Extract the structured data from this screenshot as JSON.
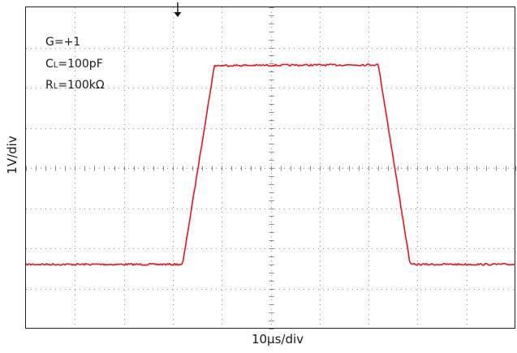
{
  "chart_data": {
    "type": "line",
    "title": "",
    "xlabel": "10µs/div",
    "ylabel": "1V/div",
    "grid": true,
    "x_divisions": 10,
    "y_divisions": 8,
    "xlim": [
      0,
      10
    ],
    "ylim": [
      0,
      8
    ],
    "x_unit": "div",
    "y_unit": "div",
    "trace_color": "#e8141b",
    "trigger_marker_x": 3.1,
    "series": [
      {
        "x": [
          0.0,
          3.2,
          3.85,
          7.2,
          7.85,
          10.0
        ],
        "y": [
          1.6,
          1.6,
          6.55,
          6.57,
          1.6,
          1.6
        ]
      }
    ],
    "annotations": {
      "gain": "G=+1",
      "cap_prefix": "C",
      "cap_sub": "L",
      "cap_value": "=100pF",
      "res_prefix": "R",
      "res_sub": "L",
      "res_value": "=100kΩ"
    }
  }
}
